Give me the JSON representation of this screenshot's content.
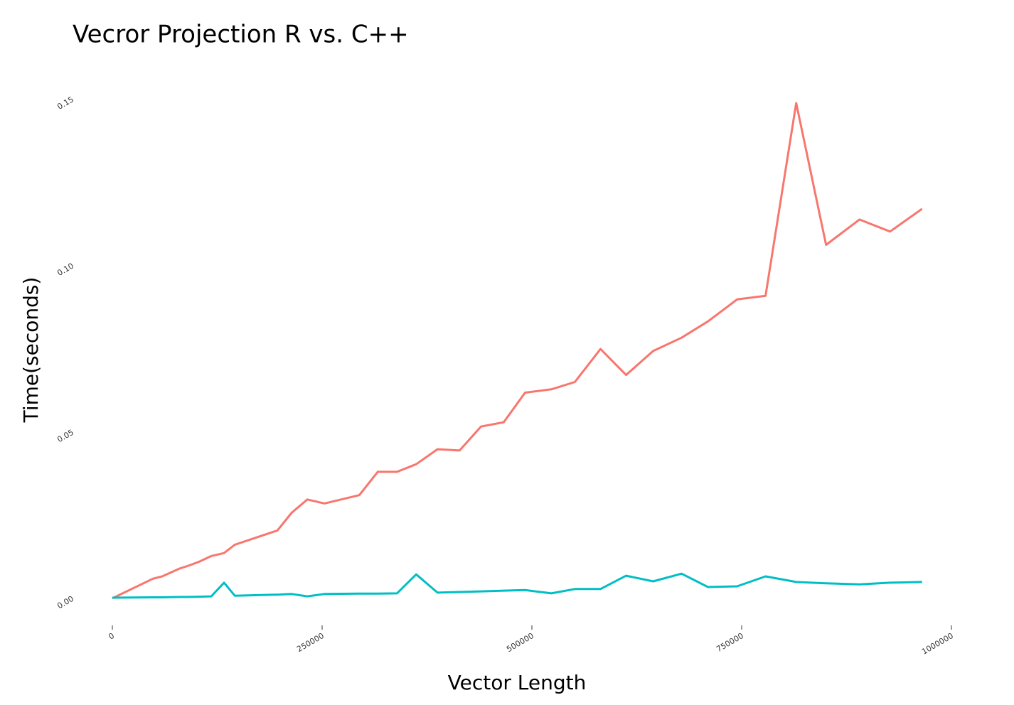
{
  "chart_data": {
    "type": "line",
    "title": "Vecror Projection R vs. C++",
    "x_label": "Vector Length",
    "y_label": "Time(seconds)",
    "x": [
      0,
      48300,
      59400,
      79700,
      90700,
      103500,
      117900,
      133100,
      145900,
      196700,
      213700,
      232400,
      252700,
      294300,
      316300,
      339200,
      362100,
      387500,
      413800,
      439300,
      466400,
      491900,
      523200,
      551200,
      581800,
      612300,
      644500,
      678400,
      709800,
      744600,
      778500,
      815000,
      850600,
      890400,
      926900,
      965000
    ],
    "series": [
      {
        "color": "#F8766D",
        "values": [
          0,
          0.0059,
          0.0066,
          0.0089,
          0.0098,
          0.011,
          0.0127,
          0.0136,
          0.0161,
          0.0204,
          0.0257,
          0.0297,
          0.0285,
          0.031,
          0.038,
          0.038,
          0.0403,
          0.0448,
          0.0444,
          0.0516,
          0.0529,
          0.0618,
          0.0628,
          0.065,
          0.0749,
          0.0671,
          0.0743,
          0.0783,
          0.0832,
          0.0898,
          0.0909,
          0.1488,
          0.1062,
          0.1138,
          0.1102,
          0.117
        ]
      },
      {
        "color": "#00BFC4",
        "values": [
          0.0002,
          0.0003,
          0.0003,
          0.0004,
          0.0004,
          0.0005,
          0.0006,
          0.0047,
          0.0008,
          0.0011,
          0.0013,
          0.0006,
          0.0013,
          0.0014,
          0.0014,
          0.0015,
          0.0072,
          0.0017,
          0.0019,
          0.0021,
          0.0023,
          0.0025,
          0.0015,
          0.0028,
          0.0028,
          0.0068,
          0.0051,
          0.0074,
          0.0034,
          0.0036,
          0.0066,
          0.0049,
          0.0045,
          0.0042,
          0.0047,
          0.0049
        ]
      }
    ],
    "xlim": [
      0,
      1000000
    ],
    "xticks": [
      0,
      250000,
      500000,
      750000,
      1000000
    ],
    "ylim": [
      -0.006,
      0.152
    ],
    "yticks": [
      {
        "value": 0,
        "label": "0.00"
      },
      {
        "value": 0.05,
        "label": "0.05"
      },
      {
        "value": 0.1,
        "label": "0.10"
      },
      {
        "value": 0.15,
        "label": "0.15"
      }
    ]
  }
}
